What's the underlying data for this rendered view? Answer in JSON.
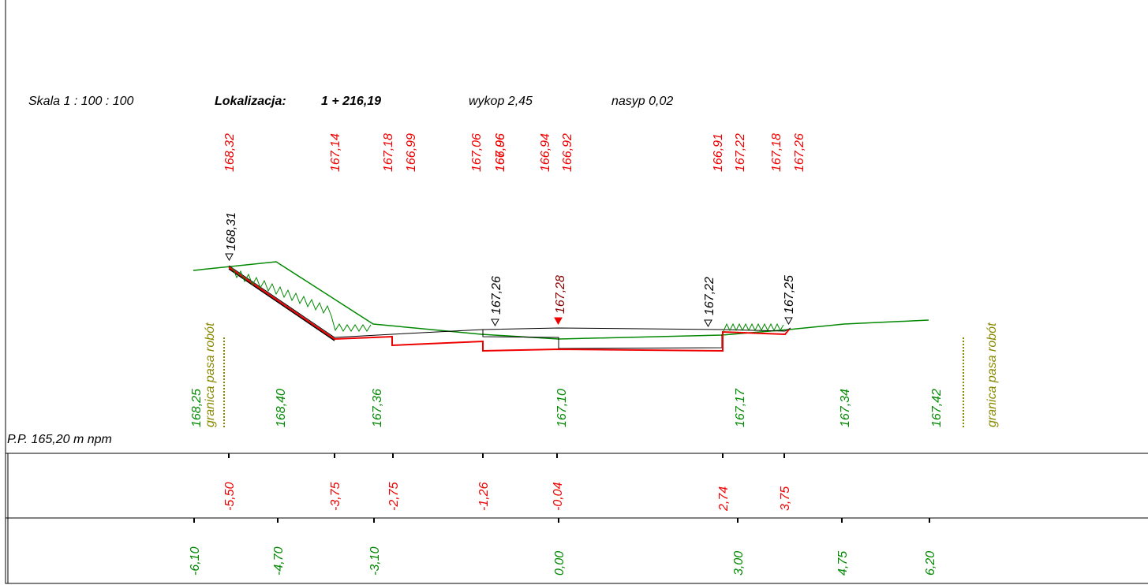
{
  "header": {
    "scale": "Skala 1 : 100 : 100",
    "location_label": "Lokalizacja:",
    "location_value": "1 + 216,19",
    "cut": "wykop 2,45",
    "fill": "nasyp 0,02"
  },
  "design_elevations": [
    "168,32",
    "167,14",
    "167,18",
    "166,99",
    "167,06",
    "166,96",
    "167,06",
    "166,94",
    "166,92",
    "166,91",
    "167,22",
    "167,18",
    "167,26"
  ],
  "profile_elevations": [
    "168,31",
    "167,26",
    "167,28",
    "167,22",
    "167,25"
  ],
  "terrain_elevations": [
    "168,25",
    "168,40",
    "167,36",
    "167,10",
    "167,17",
    "167,34",
    "167,42"
  ],
  "boundary_labels": [
    "granica pasa robót",
    "granica pasa robót"
  ],
  "datum": "P.P. 165,20 m npm",
  "design_offsets": [
    "-5,50",
    "-3,75",
    "-2,75",
    "-1,26",
    "-0,04",
    "2,74",
    "3,75"
  ],
  "terrain_offsets": [
    "-6,10",
    "-4,70",
    "-3,10",
    "0,00",
    "3,00",
    "4,75",
    "6,20"
  ]
}
